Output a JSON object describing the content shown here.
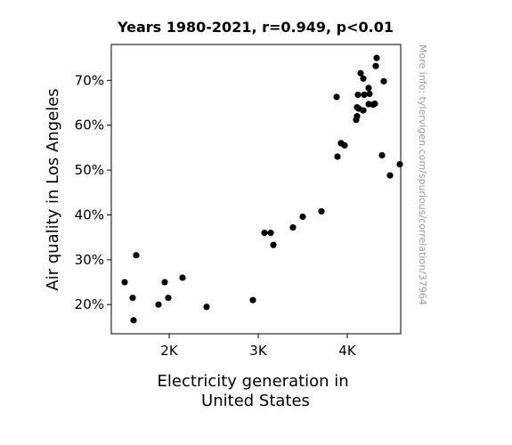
{
  "chart_data": {
    "type": "scatter",
    "title": "Years 1980-2021, r=0.949, p<0.01",
    "xlabel_lines": [
      "Electricity generation in",
      "United States"
    ],
    "ylabel": "Air quality in Los Angeles",
    "side_note": "More info: tylervigen.com/spurious/correlation/37964",
    "xlim": [
      1350,
      4600
    ],
    "ylim": [
      13.5,
      78
    ],
    "xticks": [
      {
        "value": 2000,
        "label": "2K"
      },
      {
        "value": 3000,
        "label": "3K"
      },
      {
        "value": 4000,
        "label": "4K"
      }
    ],
    "yticks": [
      {
        "value": 20,
        "label": "20%"
      },
      {
        "value": 30,
        "label": "30%"
      },
      {
        "value": 40,
        "label": "40%"
      },
      {
        "value": 50,
        "label": "50%"
      },
      {
        "value": 60,
        "label": "60%"
      },
      {
        "value": 70,
        "label": "70%"
      }
    ],
    "grid": false,
    "marker_color": "#000000",
    "points": [
      {
        "x": 1500,
        "y": 25.0
      },
      {
        "x": 1590,
        "y": 21.5
      },
      {
        "x": 1600,
        "y": 16.5
      },
      {
        "x": 1630,
        "y": 31.0
      },
      {
        "x": 1880,
        "y": 20.0
      },
      {
        "x": 1950,
        "y": 25.0
      },
      {
        "x": 1990,
        "y": 21.5
      },
      {
        "x": 2150,
        "y": 26.0
      },
      {
        "x": 2420,
        "y": 19.5
      },
      {
        "x": 2940,
        "y": 21.0
      },
      {
        "x": 3070,
        "y": 36.0
      },
      {
        "x": 3140,
        "y": 36.0
      },
      {
        "x": 3170,
        "y": 33.3
      },
      {
        "x": 3390,
        "y": 37.2
      },
      {
        "x": 3500,
        "y": 39.6
      },
      {
        "x": 3710,
        "y": 40.8
      },
      {
        "x": 3890,
        "y": 53.0
      },
      {
        "x": 3970,
        "y": 55.5
      },
      {
        "x": 4250,
        "y": 67.0
      },
      {
        "x": 4390,
        "y": 53.3
      },
      {
        "x": 4480,
        "y": 48.8
      },
      {
        "x": 4590,
        "y": 51.3
      },
      {
        "x": 4700,
        "y": 50.1
      },
      {
        "x": 4750,
        "y": 52.5
      },
      {
        "x": 3880,
        "y": 66.3
      },
      {
        "x": 3930,
        "y": 56.0
      },
      {
        "x": 4100,
        "y": 61.2
      },
      {
        "x": 4110,
        "y": 62.0
      },
      {
        "x": 4110,
        "y": 64.0
      },
      {
        "x": 4130,
        "y": 63.7
      },
      {
        "x": 4120,
        "y": 66.8
      },
      {
        "x": 4150,
        "y": 71.6
      },
      {
        "x": 4180,
        "y": 70.4
      },
      {
        "x": 4190,
        "y": 66.8
      },
      {
        "x": 4180,
        "y": 63.3
      },
      {
        "x": 4240,
        "y": 64.7
      },
      {
        "x": 4310,
        "y": 64.8
      },
      {
        "x": 4240,
        "y": 68.3
      },
      {
        "x": 4320,
        "y": 73.2
      },
      {
        "x": 4330,
        "y": 75.0
      },
      {
        "x": 4410,
        "y": 69.8
      },
      {
        "x": 4290,
        "y": 64.6
      }
    ]
  }
}
